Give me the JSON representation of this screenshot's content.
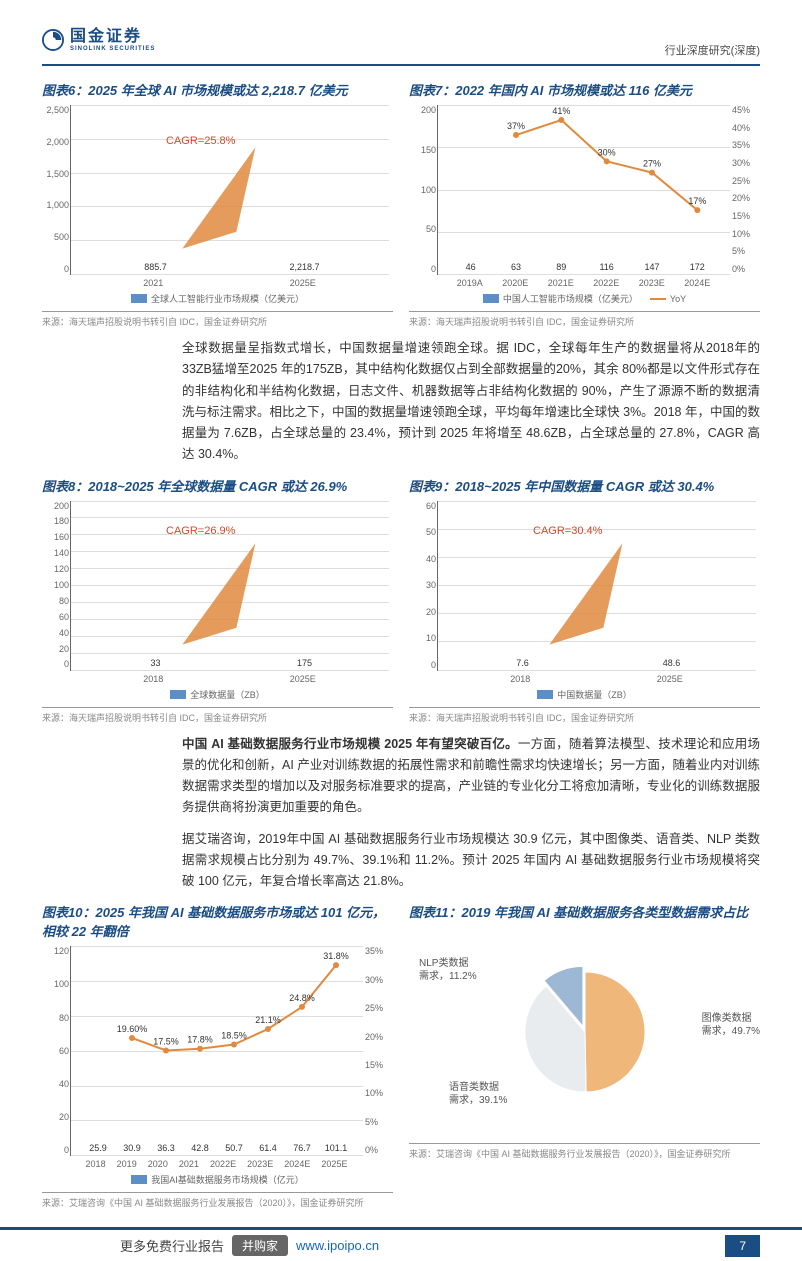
{
  "header": {
    "logo_cn": "国金证券",
    "logo_en": "SINOLINK SECURITIES",
    "right": "行业深度研究(深度)"
  },
  "chart6": {
    "title": "图表6：2025 年全球 AI 市场规模或达 2,218.7 亿美元",
    "type": "bar",
    "ymax": 2500,
    "yticks": [
      "2,500",
      "2,000",
      "1,500",
      "1,000",
      "500",
      "0"
    ],
    "cats": [
      "2021",
      "2025E"
    ],
    "vals": [
      885.7,
      2218.7
    ],
    "labels": [
      "885.7",
      "2,218.7"
    ],
    "bar_color": "#5b8fc6",
    "cagr_text": "CAGR=25.8%",
    "cagr_color": "#d04a2a",
    "legend": "全球人工智能行业市场规模（亿美元）",
    "source": "来源：海天瑞声招股说明书转引自 IDC，国金证券研究所"
  },
  "chart7": {
    "title": "图表7：2022 年国内 AI 市场规模或达 116 亿美元",
    "type": "bar+line",
    "ymax": 200,
    "yticks": [
      "200",
      "150",
      "100",
      "50",
      "0"
    ],
    "y2ticks": [
      "45%",
      "40%",
      "35%",
      "30%",
      "25%",
      "20%",
      "15%",
      "10%",
      "5%",
      "0%"
    ],
    "cats": [
      "2019A",
      "2020E",
      "2021E",
      "2022E",
      "2023E",
      "2024E"
    ],
    "vals": [
      46,
      63,
      89,
      116,
      147,
      172
    ],
    "labels": [
      "46",
      "63",
      "89",
      "116",
      "147",
      "172"
    ],
    "yoy": [
      null,
      37,
      41,
      30,
      27,
      17
    ],
    "yoy_labels": [
      "",
      "37%",
      "41%",
      "30%",
      "27%",
      "17%"
    ],
    "bar_color": "#5b8fc6",
    "line_color": "#e08a3e",
    "legend_bar": "中国人工智能市场规模（亿美元）",
    "legend_line": "YoY",
    "source": "来源：海天瑞声招股说明书转引自 IDC，国金证券研究所"
  },
  "para1": "全球数据量呈指数式增长，中国数据量增速领跑全球。据 IDC，全球每年生产的数据量将从2018年的33ZB猛增至2025 年的175ZB，其中结构化数据仅占到全部数据量的20%，其余 80%都是以文件形式存在的非结构化和半结构化数据，日志文件、机器数据等占非结构化数据的 90%，产生了源源不断的数据清洗与标注需求。相比之下，中国的数据量增速领跑全球，平均每年增速比全球快 3%。2018 年，中国的数据量为 7.6ZB，占全球总量的 23.4%，预计到 2025 年将增至 48.6ZB，占全球总量的 27.8%，CAGR 高达 30.4%。",
  "chart8": {
    "title": "图表8：2018~2025 年全球数据量 CAGR 或达 26.9%",
    "ymax": 200,
    "yticks": [
      "200",
      "180",
      "160",
      "140",
      "120",
      "100",
      "80",
      "60",
      "40",
      "20",
      "0"
    ],
    "cats": [
      "2018",
      "2025E"
    ],
    "vals": [
      33,
      175
    ],
    "labels": [
      "33",
      "175"
    ],
    "bar_color": "#5b8fc6",
    "cagr_text": "CAGR=26.9%",
    "cagr_color": "#d04a2a",
    "legend": "全球数据量（ZB）",
    "source": "来源：海天瑞声招股说明书转引自 IDC，国金证券研究所"
  },
  "chart9": {
    "title": "图表9：2018~2025 年中国数据量 CAGR 或达 30.4%",
    "ymax": 60,
    "yticks": [
      "60",
      "50",
      "40",
      "30",
      "20",
      "10",
      "0"
    ],
    "cats": [
      "2018",
      "2025E"
    ],
    "vals": [
      7.6,
      48.6
    ],
    "labels": [
      "7.6",
      "48.6"
    ],
    "bar_color": "#5b8fc6",
    "cagr_text": "CAGR=30.4%",
    "cagr_color": "#d04a2a",
    "legend": "中国数据量（ZB）",
    "source": "来源：海天瑞声招股说明书转引自 IDC，国金证券研究所"
  },
  "para2_bold": "中国 AI 基础数据服务行业市场规模 2025 年有望突破百亿。",
  "para2": "一方面，随着算法模型、技术理论和应用场景的优化和创新，AI 产业对训练数据的拓展性需求和前瞻性需求均快速增长；另一方面，随着业内对训练数据需求类型的增加以及对服务标准要求的提高，产业链的专业化分工将愈加清晰，专业化的训练数据服务提供商将扮演更加重要的角色。",
  "para3": "据艾瑞咨询，2019年中国 AI 基础数据服务行业市场规模达 30.9 亿元，其中图像类、语音类、NLP 类数据需求规模占比分别为 49.7%、39.1%和 11.2%。预计 2025 年国内 AI 基础数据服务行业市场规模将突破 100 亿元，年复合增长率高达 21.8%。",
  "chart10": {
    "title": "图表10：2025 年我国 AI 基础数据服务市场或达 101 亿元，相较 22 年翻倍",
    "ymax": 120,
    "yticks": [
      "120",
      "100",
      "80",
      "60",
      "40",
      "20",
      "0"
    ],
    "y2ticks": [
      "35%",
      "30%",
      "25%",
      "20%",
      "15%",
      "10%",
      "5%",
      "0%"
    ],
    "cats": [
      "2018",
      "2019",
      "2020",
      "2021",
      "2022E",
      "2023E",
      "2024E",
      "2025E"
    ],
    "vals": [
      25.9,
      30.9,
      36.3,
      42.8,
      50.7,
      61.4,
      76.7,
      101.1
    ],
    "labels": [
      "25.9",
      "30.9",
      "36.3",
      "42.8",
      "50.7",
      "61.4",
      "76.7",
      "101.1"
    ],
    "growth": [
      null,
      19.6,
      17.5,
      17.8,
      18.5,
      21.1,
      24.8,
      31.8
    ],
    "growth_labels": [
      "",
      "19.60%",
      "17.5%",
      "17.8%",
      "18.5%",
      "21.1%",
      "24.8%",
      "31.8%"
    ],
    "bar_color": "#5b8fc6",
    "line_color": "#e08a3e",
    "legend_bar": "我国AI基础数据服务市场规模（亿元）",
    "source": "来源：艾瑞咨询《中国 AI 基础数据服务行业发展报告（2020）》，国金证券研究所"
  },
  "chart11": {
    "title": "图表11：2019 年我国 AI 基础数据服务各类型数据需求占比",
    "slices": [
      {
        "name": "图像类数据需求",
        "label": "图像类数据\n需求，49.7%",
        "value": 49.7,
        "color": "#f0b77a"
      },
      {
        "name": "语音类数据需求",
        "label": "语音类数据\n需求，39.1%",
        "value": 39.1,
        "color": "#e8ecef"
      },
      {
        "name": "NLP类数据需求",
        "label": "NLP类数据\n需求，11.2%",
        "value": 11.2,
        "color": "#9cb8d4"
      }
    ],
    "source": "来源：艾瑞咨询《中国 AI 基础数据服务行业发展报告（2020）》，国金证券研究所"
  },
  "footer": {
    "text": "更多免费行业报告",
    "badge": "并购家",
    "url": "www.ipoipo.cn",
    "page": "7"
  }
}
